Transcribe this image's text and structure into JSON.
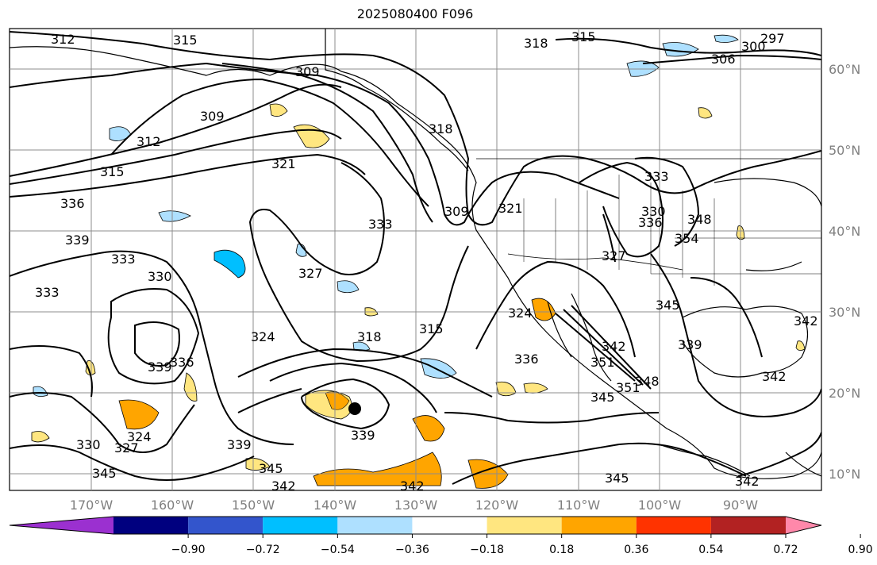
{
  "title": "2025080400 F096",
  "lon_labels": [
    "170°W",
    "160°W",
    "150°W",
    "140°W",
    "130°W",
    "120°W",
    "110°W",
    "100°W",
    "90°W"
  ],
  "lat_labels": [
    "60°N",
    "50°N",
    "40°N",
    "30°N",
    "20°N",
    "10°N"
  ],
  "contour_labels": [
    "312",
    "315",
    "318",
    "315",
    "297",
    "300",
    "309",
    "306",
    "312",
    "309",
    "315",
    "321",
    "318",
    "336",
    "339",
    "333",
    "333",
    "330",
    "333",
    "309",
    "321",
    "324",
    "327",
    "333",
    "318",
    "315",
    "324",
    "336",
    "339",
    "336",
    "339",
    "330",
    "327",
    "324",
    "345",
    "345",
    "342",
    "342",
    "339",
    "339",
    "345",
    "342",
    "342",
    "351",
    "348",
    "345",
    "345",
    "348",
    "351",
    "354",
    "327",
    "336",
    "342",
    "342",
    "330"
  ],
  "colorbar": {
    "ticks": [
      "−0.90",
      "−0.72",
      "−0.54",
      "−0.36",
      "−0.18",
      "0.18",
      "0.36",
      "0.54",
      "0.72",
      "0.90"
    ],
    "colors": [
      "#9b30d0",
      "#00007f",
      "#3355cc",
      "#00bfff",
      "#aee0ff",
      "#ffffff",
      "#ffe680",
      "#ffa500",
      "#ff3300",
      "#b22222",
      "#ff88aa"
    ]
  },
  "storm_marker": "black-dot"
}
